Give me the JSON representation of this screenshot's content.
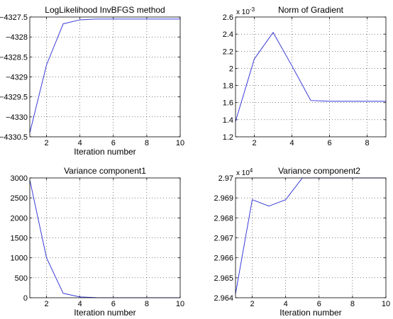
{
  "colors": {
    "line": "#3b3bd9",
    "axis": "#000000",
    "grid": "#000000",
    "background": "#ffffff"
  },
  "chart_data": [
    {
      "type": "line",
      "title": "LogLikelihood InvBFGS method",
      "xlabel": "Iteration number",
      "ylabel": "",
      "exponent": "",
      "xlim": [
        1,
        10
      ],
      "ylim": [
        -4330.5,
        -4327.5
      ],
      "xticks": [
        2,
        4,
        6,
        8,
        10
      ],
      "xtick_labels": [
        "2",
        "4",
        "6",
        "8",
        "10"
      ],
      "yticks": [
        -4330.5,
        -4330,
        -4329.5,
        -4329,
        -4328.5,
        -4328,
        -4327.5
      ],
      "ytick_labels": [
        "−4330.5",
        "−4330",
        "−4329.5",
        "−4329",
        "−4328.5",
        "−4328",
        "−4327.5"
      ],
      "grid": true,
      "x": [
        1,
        2,
        3,
        4,
        5,
        6,
        7,
        8,
        9,
        10
      ],
      "y": [
        -4330.4,
        -4328.7,
        -4327.67,
        -4327.57,
        -4327.55,
        -4327.55,
        -4327.55,
        -4327.55,
        -4327.55,
        -4327.55
      ]
    },
    {
      "type": "line",
      "title": "Norm of Gradient",
      "xlabel": "",
      "ylabel": "",
      "exponent": "-3",
      "xlim": [
        1,
        9
      ],
      "ylim": [
        1.2,
        2.6
      ],
      "xticks": [
        2,
        4,
        6,
        8
      ],
      "xtick_labels": [
        "2",
        "4",
        "6",
        "8"
      ],
      "yticks": [
        1.2,
        1.4,
        1.6,
        1.8,
        2,
        2.2,
        2.4,
        2.6
      ],
      "ytick_labels": [
        "1.2",
        "1.4",
        "1.6",
        "1.8",
        "2",
        "2.2",
        "2.4",
        "2.6"
      ],
      "grid": true,
      "x": [
        1,
        2,
        3,
        4,
        5,
        6,
        7,
        8,
        9
      ],
      "y": [
        1.38,
        2.11,
        2.42,
        2.03,
        1.625,
        1.615,
        1.615,
        1.615,
        1.615
      ]
    },
    {
      "type": "line",
      "title": "Variance component1",
      "xlabel": "Iteration number",
      "ylabel": "",
      "exponent": "",
      "xlim": [
        1,
        10
      ],
      "ylim": [
        0,
        3000
      ],
      "xticks": [
        2,
        4,
        6,
        8,
        10
      ],
      "xtick_labels": [
        "2",
        "4",
        "6",
        "8",
        "10"
      ],
      "yticks": [
        0,
        500,
        1000,
        1500,
        2000,
        2500,
        3000
      ],
      "ytick_labels": [
        "0",
        "500",
        "1000",
        "1500",
        "2000",
        "2500",
        "3000"
      ],
      "grid": true,
      "x": [
        1,
        2,
        3,
        4,
        5,
        6,
        7,
        8,
        9,
        10
      ],
      "y": [
        2950,
        1000,
        110,
        20,
        3,
        0,
        0,
        0,
        0,
        0
      ]
    },
    {
      "type": "line",
      "title": "Variance component2",
      "xlabel": "Iteration number",
      "ylabel": "",
      "exponent": "4",
      "xlim": [
        1,
        10
      ],
      "ylim": [
        2.964,
        2.97
      ],
      "xticks": [
        2,
        4,
        6,
        8,
        10
      ],
      "xtick_labels": [
        "2",
        "4",
        "6",
        "8",
        "10"
      ],
      "yticks": [
        2.964,
        2.965,
        2.966,
        2.967,
        2.968,
        2.969,
        2.97
      ],
      "ytick_labels": [
        "2.964",
        "2.965",
        "2.966",
        "2.967",
        "2.968",
        "2.969",
        "2.97"
      ],
      "grid": true,
      "x": [
        1,
        2,
        3,
        4,
        5,
        6,
        7,
        8,
        9,
        10
      ],
      "y": [
        2.9642,
        2.96891,
        2.96859,
        2.96891,
        2.97,
        2.97,
        2.97,
        2.97,
        2.97,
        2.97
      ]
    }
  ]
}
